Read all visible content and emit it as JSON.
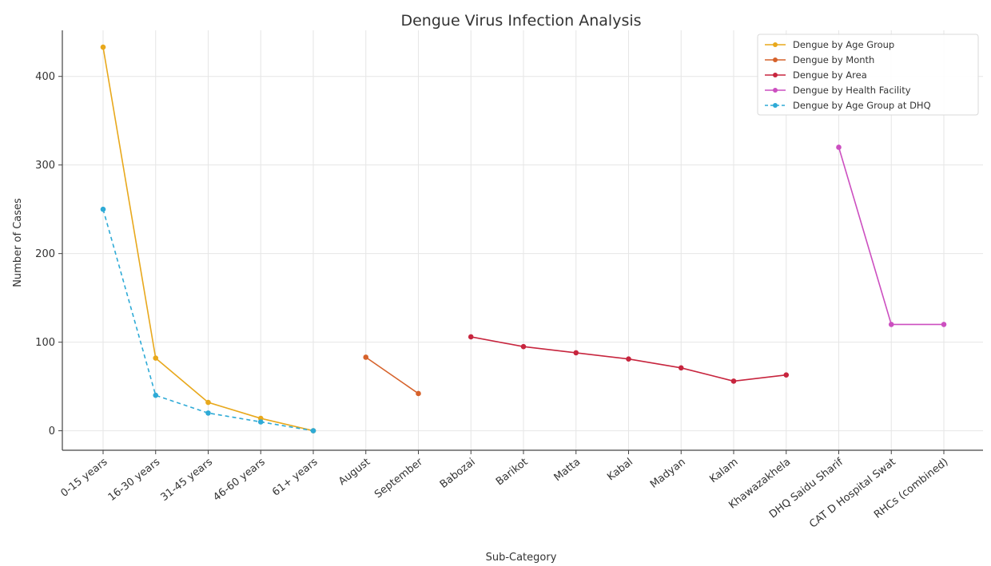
{
  "chart_data": {
    "type": "line",
    "title": "Dengue Virus Infection Analysis",
    "xlabel": "Sub-Category",
    "ylabel": "Number of Cases",
    "categories": [
      "0-15 years",
      "16-30 years",
      "31-45 years",
      "46-60 years",
      "61+ years",
      "August",
      "September",
      "Babozai",
      "Barikot",
      "Matta",
      "Kabal",
      "Madyan",
      "Kalam",
      "Khawazakhela",
      "DHQ Saidu Sharif",
      "CAT D Hospital Swat",
      "RHCs (combined)"
    ],
    "yticks": [
      0,
      100,
      200,
      300,
      400
    ],
    "ylim": [
      -22,
      452
    ],
    "grid": true,
    "legend_position": "top-right",
    "series": [
      {
        "name": "Dengue by Age Group",
        "color": "#e8a81c",
        "dash": "solid",
        "points": [
          {
            "x": "0-15 years",
            "y": 433
          },
          {
            "x": "16-30 years",
            "y": 82
          },
          {
            "x": "31-45 years",
            "y": 32
          },
          {
            "x": "46-60 years",
            "y": 14
          },
          {
            "x": "61+ years",
            "y": 0
          }
        ]
      },
      {
        "name": "Dengue by Month",
        "color": "#d6622b",
        "dash": "solid",
        "points": [
          {
            "x": "August",
            "y": 83
          },
          {
            "x": "September",
            "y": 42
          }
        ]
      },
      {
        "name": "Dengue by Area",
        "color": "#c7253e",
        "dash": "solid",
        "points": [
          {
            "x": "Babozai",
            "y": 106
          },
          {
            "x": "Barikot",
            "y": 95
          },
          {
            "x": "Matta",
            "y": 88
          },
          {
            "x": "Kabal",
            "y": 81
          },
          {
            "x": "Madyan",
            "y": 71
          },
          {
            "x": "Kalam",
            "y": 56
          },
          {
            "x": "Khawazakhela",
            "y": 63
          }
        ]
      },
      {
        "name": "Dengue by Health Facility",
        "color": "#cc4fc0",
        "dash": "solid",
        "points": [
          {
            "x": "DHQ Saidu Sharif",
            "y": 320
          },
          {
            "x": "CAT D Hospital Swat",
            "y": 120
          },
          {
            "x": "RHCs (combined)",
            "y": 120
          }
        ]
      },
      {
        "name": "Dengue by Age Group at DHQ",
        "color": "#2eaad6",
        "dash": "dashed",
        "points": [
          {
            "x": "0-15 years",
            "y": 250
          },
          {
            "x": "16-30 years",
            "y": 40
          },
          {
            "x": "31-45 years",
            "y": 20
          },
          {
            "x": "46-60 years",
            "y": 10
          },
          {
            "x": "61+ years",
            "y": 0
          }
        ]
      }
    ]
  }
}
